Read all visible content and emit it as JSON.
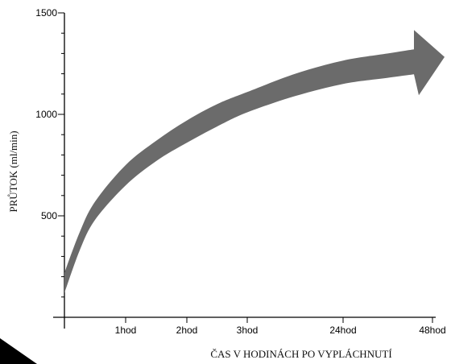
{
  "chart_data": {
    "type": "area",
    "xlabel": "ČAS V HODINÁCH PO VYPLÁCHNUTÍ",
    "ylabel": "PRŮTOK (ml/min)",
    "ylim": [
      0,
      1500
    ],
    "y_ticks": [
      500,
      1000,
      1500
    ],
    "y_tick_labels": [
      "500",
      "1000",
      "1500"
    ],
    "x_ticks": [
      "1hod",
      "2hod",
      "3hod",
      "24hod",
      "48hod"
    ],
    "grid": false,
    "band_color": "#6b6b6b",
    "series": [
      {
        "name": "",
        "x": [
          0,
          0.25,
          0.5,
          1,
          1.5,
          2,
          2.5,
          3,
          13.5,
          24,
          36,
          48
        ],
        "upper": [
          220,
          420,
          570,
          750,
          870,
          970,
          1050,
          1110,
          1200,
          1265,
          1300,
          1335
        ],
        "lower": [
          120,
          330,
          480,
          650,
          770,
          860,
          940,
          1010,
          1090,
          1150,
          1180,
          1210
        ]
      }
    ]
  }
}
